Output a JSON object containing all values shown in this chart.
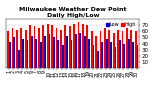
{
  "title": "Milwaukee Weather Dew Point",
  "subtitle": "Daily High/Low",
  "high_values": [
    60,
    65,
    62,
    65,
    62,
    70,
    68,
    65,
    70,
    72,
    70,
    65,
    62,
    70,
    68,
    72,
    75,
    72,
    70,
    60,
    52,
    60,
    65,
    62,
    58,
    62,
    60,
    65,
    62,
    60
  ],
  "low_values": [
    42,
    50,
    30,
    48,
    45,
    52,
    48,
    42,
    52,
    55,
    50,
    45,
    38,
    52,
    45,
    55,
    58,
    52,
    48,
    38,
    28,
    42,
    48,
    42,
    35,
    45,
    40,
    48,
    42,
    38
  ],
  "x_labels": [
    "1",
    "2",
    "3",
    "4",
    "5",
    "6",
    "7",
    "8",
    "9",
    "10",
    "11",
    "12",
    "13",
    "14",
    "15",
    "16",
    "17",
    "18",
    "19",
    "20",
    "21",
    "22",
    "23",
    "24",
    "25",
    "26",
    "27",
    "28",
    "29",
    "30"
  ],
  "high_color": "#ff0000",
  "low_color": "#0000cc",
  "ylim": [
    0,
    80
  ],
  "yticks": [
    10,
    20,
    30,
    40,
    50,
    60,
    70
  ],
  "ylabel_fontsize": 4,
  "xlabel_fontsize": 3.5,
  "title_fontsize": 4.5,
  "legend_fontsize": 3.5,
  "bg_color": "#ffffff",
  "plot_bg_color": "#ffffff",
  "bar_width": 0.4,
  "grid": true
}
